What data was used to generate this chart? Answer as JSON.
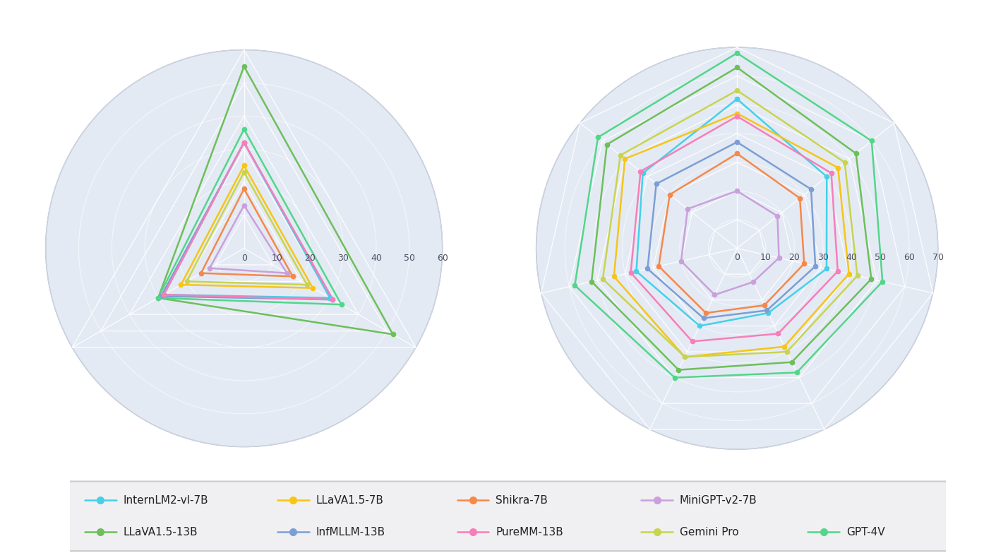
{
  "models": [
    "InternLM2-vl-7B",
    "LLaVA1.5-7B",
    "Shikra-7B",
    "MiniGPT-v2-7B",
    "LLaVA1.5-13B",
    "InfMLLM-13B",
    "PureMM-13B",
    "Gemini Pro",
    "GPT-4V"
  ],
  "colors": [
    "#45D0E8",
    "#F5C518",
    "#F5884A",
    "#C9A0DC",
    "#6DBF5A",
    "#7B9FD4",
    "#F77EB9",
    "#C8D44E",
    "#52D68A"
  ],
  "left_chart": {
    "n_axes": 3,
    "rmax": 60,
    "rticks": [
      10,
      20,
      30,
      40,
      50,
      60
    ],
    "tick_labels": [
      "0",
      "10",
      "20",
      "30",
      "40",
      "50",
      "60"
    ],
    "data": {
      "InternLM2-vl-7B": [
        32,
        30,
        28
      ],
      "LLaVA1.5-7B": [
        25,
        24,
        22
      ],
      "Shikra-7B": [
        18,
        17,
        15
      ],
      "MiniGPT-v2-7B": [
        13,
        15,
        12
      ],
      "LLaVA1.5-13B": [
        55,
        52,
        30
      ],
      "InfMLLM-13B": [
        32,
        31,
        29
      ],
      "PureMM-13B": [
        32,
        31,
        28
      ],
      "Gemini Pro": [
        23,
        22,
        20
      ],
      "GPT-4V": [
        36,
        34,
        30
      ]
    }
  },
  "right_chart": {
    "n_axes": 7,
    "rmax": 70,
    "rticks": [
      10,
      20,
      30,
      40,
      50,
      60,
      70
    ],
    "tick_labels": [
      "0",
      "10",
      "20",
      "30",
      "40",
      "50",
      "60",
      "70"
    ],
    "data": {
      "InternLM2-vl-7B": [
        52,
        40,
        32,
        25,
        30,
        36,
        42
      ],
      "LLaVA1.5-7B": [
        47,
        45,
        40,
        38,
        42,
        44,
        50
      ],
      "Shikra-7B": [
        33,
        28,
        24,
        22,
        25,
        28,
        30
      ],
      "MiniGPT-v2-7B": [
        20,
        18,
        15,
        13,
        18,
        20,
        22
      ],
      "LLaVA1.5-13B": [
        63,
        53,
        48,
        44,
        47,
        52,
        58
      ],
      "InfMLLM-13B": [
        37,
        33,
        28,
        24,
        27,
        32,
        36
      ],
      "PureMM-13B": [
        46,
        42,
        36,
        33,
        36,
        38,
        43
      ],
      "Gemini Pro": [
        55,
        48,
        43,
        40,
        42,
        48,
        52
      ],
      "GPT-4V": [
        68,
        60,
        52,
        48,
        50,
        58,
        62
      ]
    }
  },
  "background_color": "#E4EAF4",
  "figure_bg": "#FFFFFF",
  "legend_bg": "#F0F0F2",
  "tick_fontsize": 9,
  "legend_fontsize": 11,
  "line_width": 1.8,
  "marker_size": 4.5
}
